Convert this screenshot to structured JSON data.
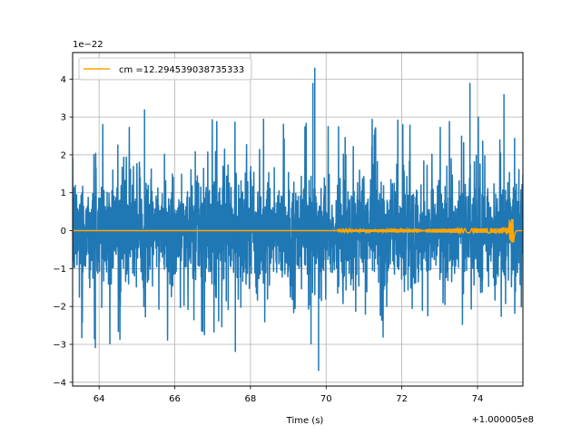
{
  "chart_data": {
    "type": "line",
    "xlabel": "Time (s)",
    "ylabel": "",
    "x_offset_label": "+1.000005e8",
    "y_scale_label": "1e−22",
    "xlim": [
      63.3,
      75.2
    ],
    "ylim": [
      -4.1,
      4.7
    ],
    "x_ticks": [
      64,
      66,
      68,
      70,
      72,
      74
    ],
    "x_tick_labels": [
      "64",
      "66",
      "68",
      "70",
      "72",
      "74"
    ],
    "y_ticks": [
      -4,
      -3,
      -2,
      -1,
      0,
      1,
      2,
      3,
      4
    ],
    "y_tick_labels": [
      "−4",
      "−3",
      "−2",
      "−1",
      "0",
      "1",
      "2",
      "3",
      "4"
    ],
    "grid": true,
    "legend_position": "top-left",
    "series": [
      {
        "name": "",
        "style": "noise",
        "color": "#1f77b4",
        "x_range": [
          63.3,
          75.2
        ],
        "typical_envelope": [
          -1.8,
          1.8
        ],
        "max_value": 4.3,
        "min_value": -3.7,
        "peaks": [
          {
            "x": 69.7,
            "y": 4.3
          },
          {
            "x": 69.65,
            "y": 3.9
          },
          {
            "x": 73.8,
            "y": 3.9
          },
          {
            "x": 74.7,
            "y": 3.6
          },
          {
            "x": 65.2,
            "y": 3.2
          },
          {
            "x": 69.8,
            "y": -3.7
          },
          {
            "x": 69.6,
            "y": -3.0
          },
          {
            "x": 63.9,
            "y": -3.1
          },
          {
            "x": 67.6,
            "y": -3.2
          }
        ]
      },
      {
        "name": "cm =12.294539038735333",
        "style": "chirp",
        "color": "#ffa500",
        "x_range": [
          63.3,
          75.2
        ],
        "chirp_start": 70.3,
        "merger_time": 74.95,
        "peak_amplitude": 0.35
      }
    ]
  }
}
